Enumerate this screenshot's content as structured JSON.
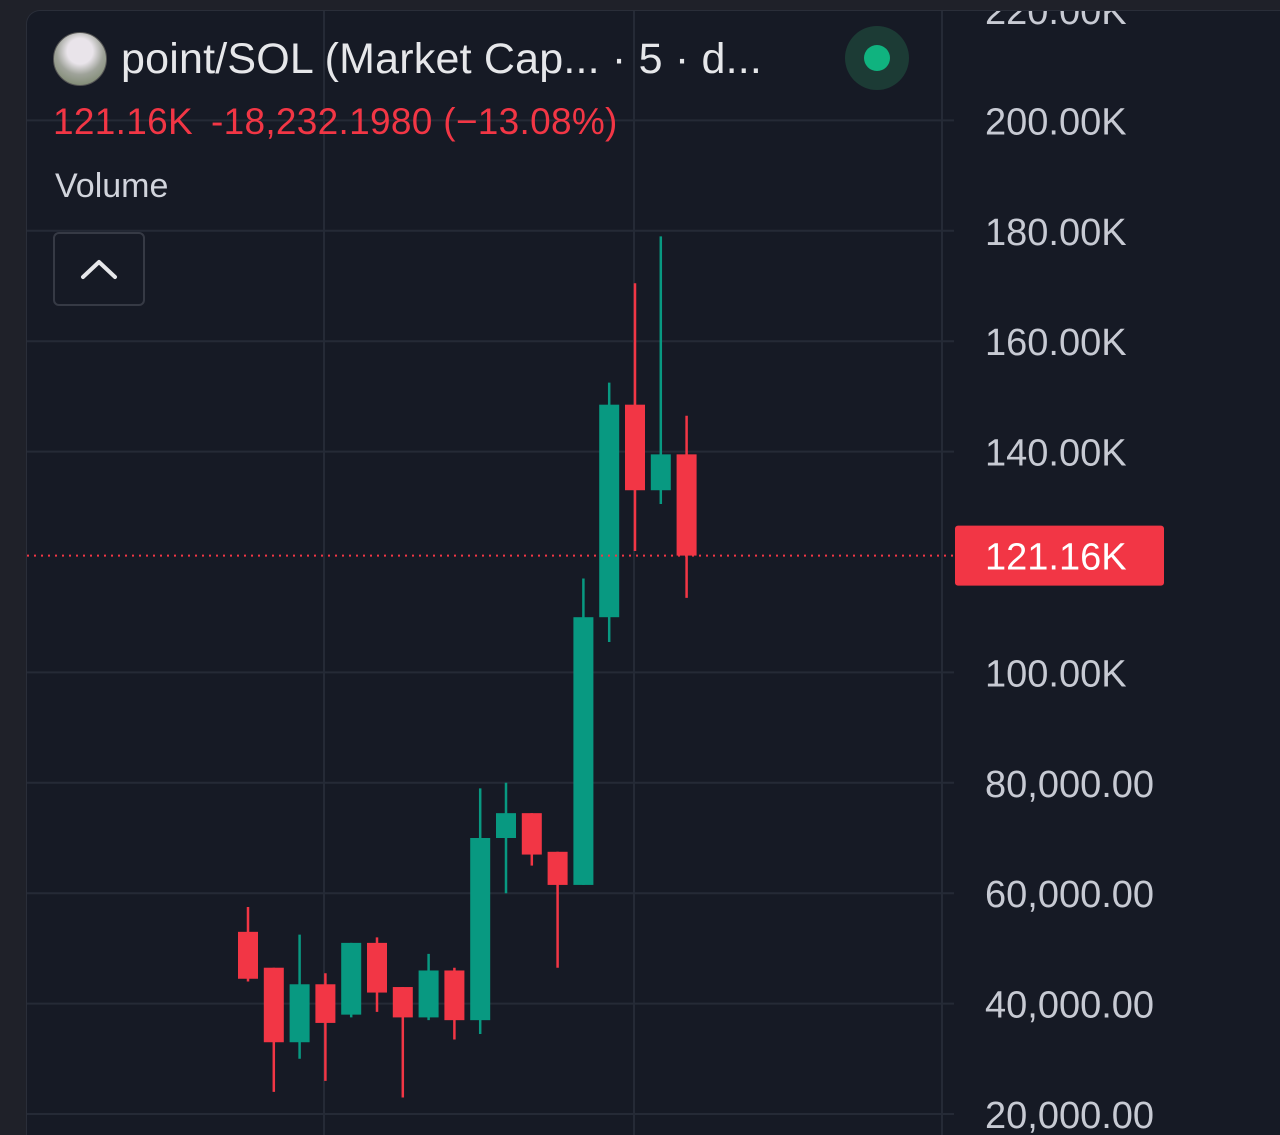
{
  "header": {
    "title": "point/SOL (Market Cap... · 5 · d...",
    "last_value": "121.16K",
    "change": "-18,232.1980 (−13.08%)",
    "indicator_label": "Volume"
  },
  "icons": {
    "avatar": "token-avatar-icon",
    "status": "status-dot-icon",
    "collapse": "chevron-up-icon"
  },
  "colors": {
    "up": "#089981",
    "down": "#f23645",
    "background": "#161a25",
    "grid": "#252a36",
    "axis_text": "#c7cad3",
    "status": "#10b37f"
  },
  "chart_data": {
    "type": "candlestick",
    "ylim": [
      20000,
      220000
    ],
    "y_ticks": [
      {
        "value": 20000,
        "label": "20,000.00"
      },
      {
        "value": 40000,
        "label": "40,000.00"
      },
      {
        "value": 60000,
        "label": "60,000.00"
      },
      {
        "value": 80000,
        "label": "80,000.00"
      },
      {
        "value": 100000,
        "label": "100.00K"
      },
      {
        "value": 140000,
        "label": "140.00K"
      },
      {
        "value": 160000,
        "label": "160.00K"
      },
      {
        "value": 180000,
        "label": "180.00K"
      },
      {
        "value": 200000,
        "label": "200.00K"
      },
      {
        "value": 220000,
        "label": "220.00K"
      }
    ],
    "last_price": {
      "value": 121160,
      "label": "121.16K"
    },
    "candles": [
      {
        "open": 53000,
        "high": 57500,
        "low": 44000,
        "close": 44500
      },
      {
        "open": 46500,
        "high": 46500,
        "low": 24000,
        "close": 33000
      },
      {
        "open": 33000,
        "high": 52500,
        "low": 30000,
        "close": 43500
      },
      {
        "open": 43500,
        "high": 45500,
        "low": 26000,
        "close": 36500
      },
      {
        "open": 38000,
        "high": 51000,
        "low": 37500,
        "close": 51000
      },
      {
        "open": 51000,
        "high": 52000,
        "low": 38500,
        "close": 42000
      },
      {
        "open": 43000,
        "high": 43000,
        "low": 23000,
        "close": 37500
      },
      {
        "open": 37500,
        "high": 49000,
        "low": 37000,
        "close": 46000
      },
      {
        "open": 46000,
        "high": 46500,
        "low": 33500,
        "close": 37000
      },
      {
        "open": 37000,
        "high": 79000,
        "low": 34500,
        "close": 70000
      },
      {
        "open": 70000,
        "high": 80000,
        "low": 60000,
        "close": 74500
      },
      {
        "open": 74500,
        "high": 74500,
        "low": 65000,
        "close": 67000
      },
      {
        "open": 67500,
        "high": 67500,
        "low": 46500,
        "close": 61500
      },
      {
        "open": 61500,
        "high": 117000,
        "low": 61500,
        "close": 110000
      },
      {
        "open": 110000,
        "high": 152500,
        "low": 105500,
        "close": 148500
      },
      {
        "open": 148500,
        "high": 170500,
        "low": 122000,
        "close": 133000
      },
      {
        "open": 133000,
        "high": 179000,
        "low": 130500,
        "close": 139500
      },
      {
        "open": 139500,
        "high": 146500,
        "low": 113500,
        "close": 121160
      }
    ]
  }
}
